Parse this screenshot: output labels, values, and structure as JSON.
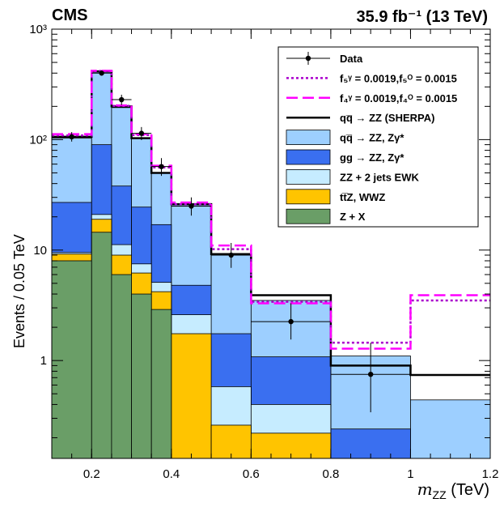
{
  "header": {
    "experiment": "CMS",
    "luminosity": "35.9 fb⁻¹ (13 TeV)"
  },
  "chart_data": {
    "type": "bar",
    "subtype": "stacked-histogram-log",
    "xlabel_var": "m",
    "xlabel_sub": "ZZ",
    "xlabel_unit": "(TeV)",
    "ylabel": "Events / 0.05 TeV",
    "xlim": [
      0.1,
      1.2
    ],
    "ylim": [
      0.13,
      1000
    ],
    "yscale": "log",
    "x_ticks": [
      "0.2",
      "0.4",
      "0.6",
      "0.8",
      "1",
      "1.2"
    ],
    "x_tick_values": [
      0.2,
      0.4,
      0.6,
      0.8,
      1.0,
      1.2
    ],
    "y_tick_values": [
      1,
      10,
      100,
      1000
    ],
    "y_tick_labels": [
      "1",
      "10",
      "10²",
      "10³"
    ],
    "bin_edges": [
      0.1,
      0.2,
      0.25,
      0.3,
      0.35,
      0.4,
      0.5,
      0.6,
      0.8,
      1.0,
      1.2
    ],
    "stack": [
      {
        "name": "Z + X",
        "color": "#6a9e67",
        "values": [
          8,
          14.5,
          6,
          4,
          2.9,
          0.13,
          0.13,
          0.13,
          0.13,
          0.13
        ]
      },
      {
        "name": "ttZ, WWZ",
        "color": "#ffc400",
        "values": [
          9.2,
          19,
          9,
          6.2,
          4.2,
          1.75,
          0.26,
          0.22,
          0.13,
          0.13
        ]
      },
      {
        "name": "ZZ + 2 jets EWK",
        "color": "#c6ecff",
        "values": [
          9.5,
          21,
          11.2,
          7.5,
          5.1,
          2.6,
          0.58,
          0.4,
          0.13,
          0.13
        ]
      },
      {
        "name": "gg → ZZ, Zγ*",
        "color": "#3a6ff0",
        "values": [
          27,
          90,
          38,
          24.5,
          17,
          4.8,
          1.75,
          1.08,
          0.24,
          0.13
        ]
      },
      {
        "name": "qq̅ → ZZ, Zγ*",
        "color": "#9dcfff",
        "values": [
          103,
          410,
          195,
          103,
          50,
          26,
          9.2,
          3.5,
          1.1,
          0.44
        ]
      }
    ],
    "lines": [
      {
        "name": "qq̅ → ZZ (SHERPA)",
        "color": "#000000",
        "dash": "",
        "width": 2.5,
        "values": [
          106,
          415,
          200,
          103,
          50,
          26,
          9.2,
          3.9,
          0.9,
          0.74
        ]
      },
      {
        "name": "f₅ᵞ = 0.0019, f₅ᴼ = 0.0015",
        "color": "#aa00cc",
        "dash": "3,3",
        "width": 2.5,
        "values": [
          109,
          418,
          202,
          110,
          56,
          26,
          10.2,
          3.4,
          1.45,
          3.5
        ]
      },
      {
        "name": "f₄ᵞ = 0.0019, f₄ᴼ = 0.0015",
        "color": "#ff00ff",
        "dash": "14,6",
        "width": 2.5,
        "values": [
          112,
          420,
          204,
          112,
          58,
          27,
          11,
          3.3,
          1.28,
          3.9
        ]
      }
    ],
    "data_points": {
      "name": "Data",
      "x": [
        0.15,
        0.225,
        0.275,
        0.325,
        0.375,
        0.45,
        0.55,
        0.7,
        0.9
      ],
      "y": [
        106,
        400,
        230,
        114,
        57,
        25,
        9,
        2.25,
        0.75
      ],
      "yerr_up": [
        117,
        420,
        255,
        130,
        68,
        30,
        11.6,
        3.3,
        1.45
      ],
      "yerr_low": [
        96,
        380,
        205,
        99,
        47,
        20.5,
        6.9,
        1.55,
        0.34
      ]
    },
    "legend": [
      {
        "label": "Data",
        "kind": "marker"
      },
      {
        "label": "f₅ᵞ = 0.0019,f₅ᴼ = 0.0015",
        "kind": "line",
        "series": 1
      },
      {
        "label": "f₄ᵞ = 0.0019,f₄ᴼ = 0.0015",
        "kind": "line",
        "series": 2
      },
      {
        "label": "qq̅ → ZZ (SHERPA)",
        "kind": "line",
        "series": 0
      },
      {
        "label": "qq̅ → ZZ, Zγ*",
        "kind": "box",
        "stack": 4
      },
      {
        "label": "gg → ZZ, Zγ*",
        "kind": "box",
        "stack": 3
      },
      {
        "label": "ZZ + 2 jets EWK",
        "kind": "box",
        "stack": 2
      },
      {
        "label": "tt̅Z, WWZ",
        "kind": "box",
        "stack": 1
      },
      {
        "label": "Z + X",
        "kind": "box",
        "stack": 0
      }
    ],
    "legend_position": "top-right"
  }
}
